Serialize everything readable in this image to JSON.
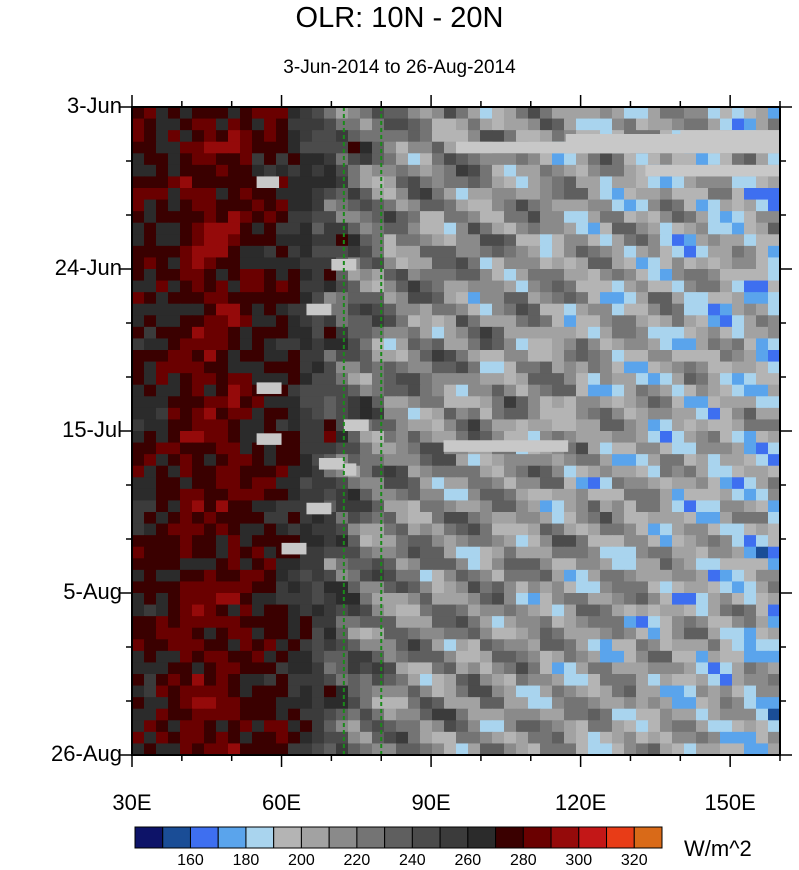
{
  "chart_data": {
    "type": "heatmap",
    "title": "OLR: 10N - 20N",
    "subtitle": "3-Jun-2014 to 26-Aug-2014",
    "x_range": [
      30,
      160
    ],
    "y_range": [
      "3-Jun-2014",
      "26-Aug-2014"
    ],
    "y_ticks": [
      "3-Jun",
      "24-Jun",
      "15-Jul",
      "5-Aug",
      "26-Aug"
    ],
    "x_ticks": [
      "30E",
      "60E",
      "90E",
      "120E",
      "150E"
    ],
    "x_tick_values": [
      30,
      60,
      90,
      120,
      150
    ],
    "reference_lines_lon": [
      72.5,
      80
    ],
    "reference_line_color": "#1a8a1a",
    "colorbar": {
      "units": "W/m^2",
      "labels": [
        "160",
        "180",
        "200",
        "220",
        "240",
        "260",
        "280",
        "300",
        "320"
      ],
      "label_values": [
        160,
        180,
        200,
        220,
        240,
        260,
        280,
        300,
        320
      ],
      "levels": [
        150,
        160,
        170,
        180,
        190,
        200,
        210,
        220,
        230,
        240,
        250,
        260,
        270,
        280,
        290,
        300,
        310,
        320,
        330
      ],
      "colors": [
        "#0d1368",
        "#1a4d96",
        "#3e6ff0",
        "#5aa4ec",
        "#a9d4ee",
        "#b4b4b4",
        "#a2a2a2",
        "#8a8a8a",
        "#747474",
        "#5f5f5f",
        "#4b4b4b",
        "#3b3b3b",
        "#2b2b2b",
        "#3a0000",
        "#6a0000",
        "#950a0a",
        "#c31717",
        "#e83c17",
        "#d96a18"
      ]
    },
    "missing_color": "#c8c8c8"
  }
}
